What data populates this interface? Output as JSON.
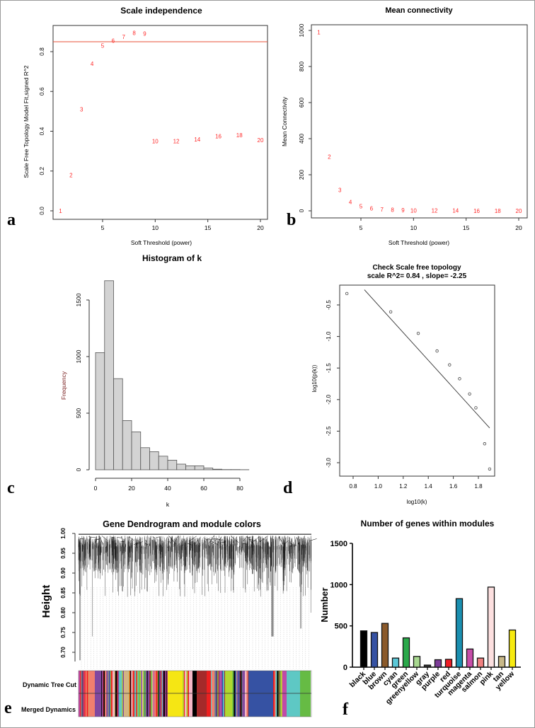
{
  "chart_data": [
    {
      "panel": "a",
      "type": "scatter",
      "title": "Scale independence",
      "xlabel": "Soft Threshold (power)",
      "ylabel": "Scale Free Topology Model Fit,signed R^2",
      "xlim": [
        0.5,
        20.5
      ],
      "ylim": [
        -0.03,
        0.93
      ],
      "xticks": [
        "5",
        "10",
        "15",
        "20"
      ],
      "yticks": [
        "0.0",
        "0.2",
        "0.4",
        "0.6",
        "0.8"
      ],
      "marker": "text labels",
      "point_color": "#ff2a2a",
      "hline": 0.85,
      "hline_color": "#e8513a",
      "points": [
        [
          1,
          0.0
        ],
        [
          2,
          0.18
        ],
        [
          3,
          0.51
        ],
        [
          4,
          0.74
        ],
        [
          5,
          0.83
        ],
        [
          6,
          0.855
        ],
        [
          7,
          0.875
        ],
        [
          8,
          0.895
        ],
        [
          9,
          0.89
        ],
        [
          10,
          0.35
        ],
        [
          12,
          0.35
        ],
        [
          14,
          0.36
        ],
        [
          16,
          0.375
        ],
        [
          18,
          0.38
        ],
        [
          20,
          0.355
        ]
      ]
    },
    {
      "panel": "b",
      "type": "scatter",
      "title": "Mean connectivity",
      "xlabel": "Soft Threshold (power)",
      "ylabel": "Mean Connectivity",
      "xlim": [
        0.5,
        20.5
      ],
      "ylim": [
        -30,
        1030
      ],
      "xticks": [
        "5",
        "10",
        "15",
        "20"
      ],
      "yticks": [
        "0",
        "200",
        "400",
        "600",
        "800",
        "1000"
      ],
      "marker": "text labels",
      "point_color": "#ff2a2a",
      "points": [
        [
          1,
          990
        ],
        [
          2,
          300
        ],
        [
          3,
          115
        ],
        [
          4,
          50
        ],
        [
          5,
          25
        ],
        [
          6,
          13
        ],
        [
          7,
          8
        ],
        [
          8,
          5
        ],
        [
          9,
          3
        ],
        [
          10,
          2
        ],
        [
          12,
          1
        ],
        [
          14,
          1
        ],
        [
          16,
          0
        ],
        [
          18,
          0
        ],
        [
          20,
          0
        ]
      ]
    },
    {
      "panel": "c",
      "type": "bar",
      "title": "Histogram of k",
      "xlabel": "k",
      "ylabel": "Frequency",
      "bin_width": 5,
      "xticks": [
        "0",
        "20",
        "40",
        "60",
        "80"
      ],
      "yticks": [
        "0",
        "500",
        "1000",
        "1500"
      ],
      "bar_color": "#d3d3d3",
      "bins_start": [
        0,
        5,
        10,
        15,
        20,
        25,
        30,
        35,
        40,
        45,
        50,
        55,
        60,
        65,
        70,
        75,
        80
      ],
      "values": [
        1035,
        1670,
        805,
        435,
        335,
        195,
        160,
        120,
        85,
        50,
        35,
        35,
        15,
        5,
        2,
        2,
        1
      ]
    },
    {
      "panel": "d",
      "type": "scatter",
      "title": "Check Scale free topology",
      "subtitle": "scale R^2= 0.84 , slope= -2.25",
      "xlabel": "log10(k)",
      "ylabel": "log10(p(k))",
      "xlim": [
        0.7,
        1.92
      ],
      "ylim": [
        -3.2,
        -0.2
      ],
      "xticks": [
        "0.8",
        "1.0",
        "1.2",
        "1.4",
        "1.6",
        "1.8"
      ],
      "yticks": [
        "-0.5",
        "-1.0",
        "-1.5",
        "-2.0",
        "-2.5",
        "-3.0"
      ],
      "points": [
        [
          0.75,
          -0.32
        ],
        [
          1.1,
          -0.61
        ],
        [
          1.32,
          -0.95
        ],
        [
          1.47,
          -1.23
        ],
        [
          1.57,
          -1.45
        ],
        [
          1.65,
          -1.67
        ],
        [
          1.73,
          -1.91
        ],
        [
          1.78,
          -2.13
        ],
        [
          1.85,
          -2.7
        ],
        [
          1.89,
          -3.1
        ]
      ],
      "fit_line": [
        [
          0.89,
          -0.26
        ],
        [
          1.89,
          -2.45
        ]
      ]
    },
    {
      "panel": "e",
      "type": "dendrogram",
      "title": "Gene Dendrogram and module colors",
      "ylabel": "Height",
      "ylim": [
        0.67,
        1.0
      ],
      "yticks": [
        "0.70",
        "0.75",
        "0.80",
        "0.85",
        "0.90",
        "0.95",
        "1.00"
      ],
      "color_rows": [
        "Dynamic Tree Cut",
        "Merged Dynamics"
      ],
      "module_block_colors": [
        "mixed",
        "#f07f6e",
        "#8048a0",
        "mixed",
        "#d4b483",
        "mixed",
        "#f5e614",
        "mixed",
        "#f4b6c6",
        "#000000",
        "#a52a2a",
        "#ee2020",
        "mixed",
        "#b0d830",
        "mixed",
        "#3652a3",
        "mixed",
        "#c04aa8",
        "#5ec8c4",
        "#66bb44"
      ]
    },
    {
      "panel": "f",
      "type": "bar",
      "title": "Number of genes within modules",
      "ylabel": "Number",
      "ylim": [
        0,
        1500
      ],
      "yticks": [
        "0",
        "500",
        "1000",
        "1500"
      ],
      "categories": [
        "black",
        "blue",
        "brown",
        "cyan",
        "green",
        "greenyellow",
        "gray",
        "purple",
        "red",
        "turquoise",
        "magenta",
        "salmon",
        "pink",
        "tan",
        "yellow"
      ],
      "values": [
        440,
        420,
        530,
        110,
        355,
        130,
        25,
        90,
        95,
        830,
        220,
        110,
        970,
        130,
        450
      ],
      "colors": [
        "#000000",
        "#3652a3",
        "#8b5a2b",
        "#5bc8d8",
        "#2aa84a",
        "#a8d890",
        "#333333",
        "#7d3c98",
        "#ee1c25",
        "#1a8fb0",
        "#c64ea8",
        "#f08080",
        "#fde0e0",
        "#c8b888",
        "#f7ea10"
      ]
    }
  ],
  "panel_labels": [
    "a",
    "b",
    "c",
    "d",
    "e",
    "f"
  ]
}
